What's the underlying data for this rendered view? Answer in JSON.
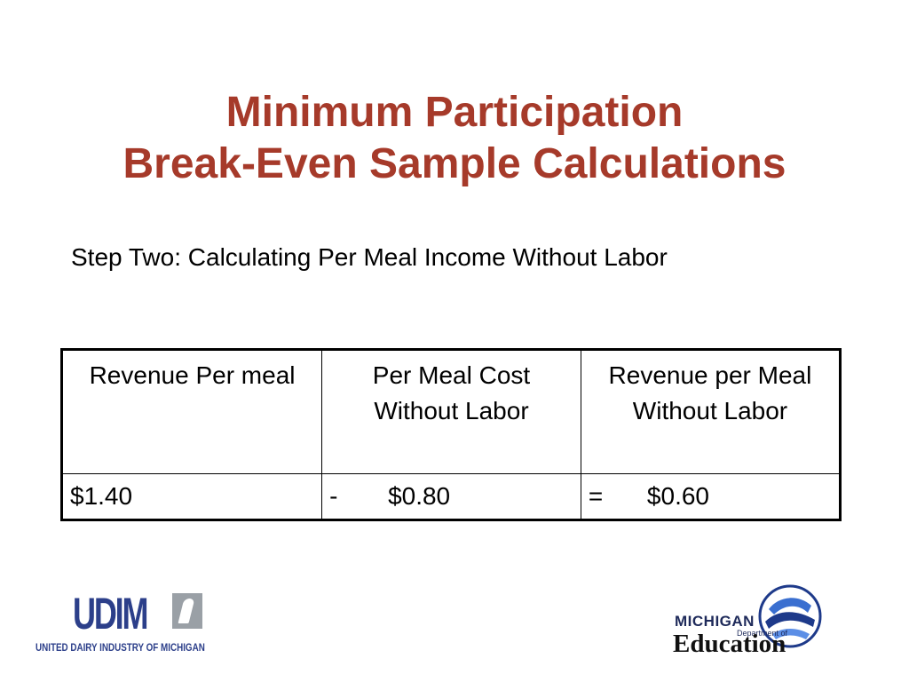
{
  "slide": {
    "title_line1": "Minimum Participation",
    "title_line2": "Break-Even Sample Calculations",
    "subtitle": "Step Two: Calculating Per Meal Income Without Labor"
  },
  "table": {
    "headers": [
      "Revenue Per meal",
      "Per Meal Cost Without Labor",
      "Revenue per Meal Without Labor"
    ],
    "row": {
      "col1_value": "$1.40",
      "col2_operator": "-",
      "col2_value": "$0.80",
      "col3_operator": "=",
      "col3_value": "$0.60"
    }
  },
  "logos": {
    "udim_word": "UDIM",
    "udim_name": "UNITED DAIRY INDUSTRY OF MICHIGAN",
    "mde_michigan": "MICHIGAN",
    "mde_department": "Department of",
    "mde_education": "Education"
  },
  "colors": {
    "title": "#a63a2a",
    "udim_blue": "#2c3f8a",
    "mde_blue": "#1e2a5a"
  }
}
